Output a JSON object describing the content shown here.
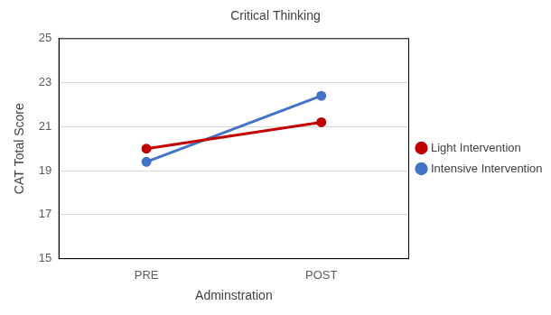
{
  "chart_data": {
    "type": "line",
    "title": "Critical Thinking",
    "x_label": "Adminstration",
    "y_label": "CAT Total Score",
    "categories": [
      "PRE",
      "POST"
    ],
    "series": [
      {
        "name": "Light Intervention",
        "color": "#c00000",
        "values": [
          20.0,
          21.2
        ]
      },
      {
        "name": "Intensive Intervention",
        "color": "#4472c4",
        "values": [
          19.4,
          22.4
        ]
      }
    ],
    "ylim": [
      15,
      25
    ],
    "yticks": [
      15,
      17,
      19,
      21,
      23,
      25
    ],
    "grid": true,
    "legend": "right",
    "marker": "circle",
    "line_style": "solid"
  }
}
